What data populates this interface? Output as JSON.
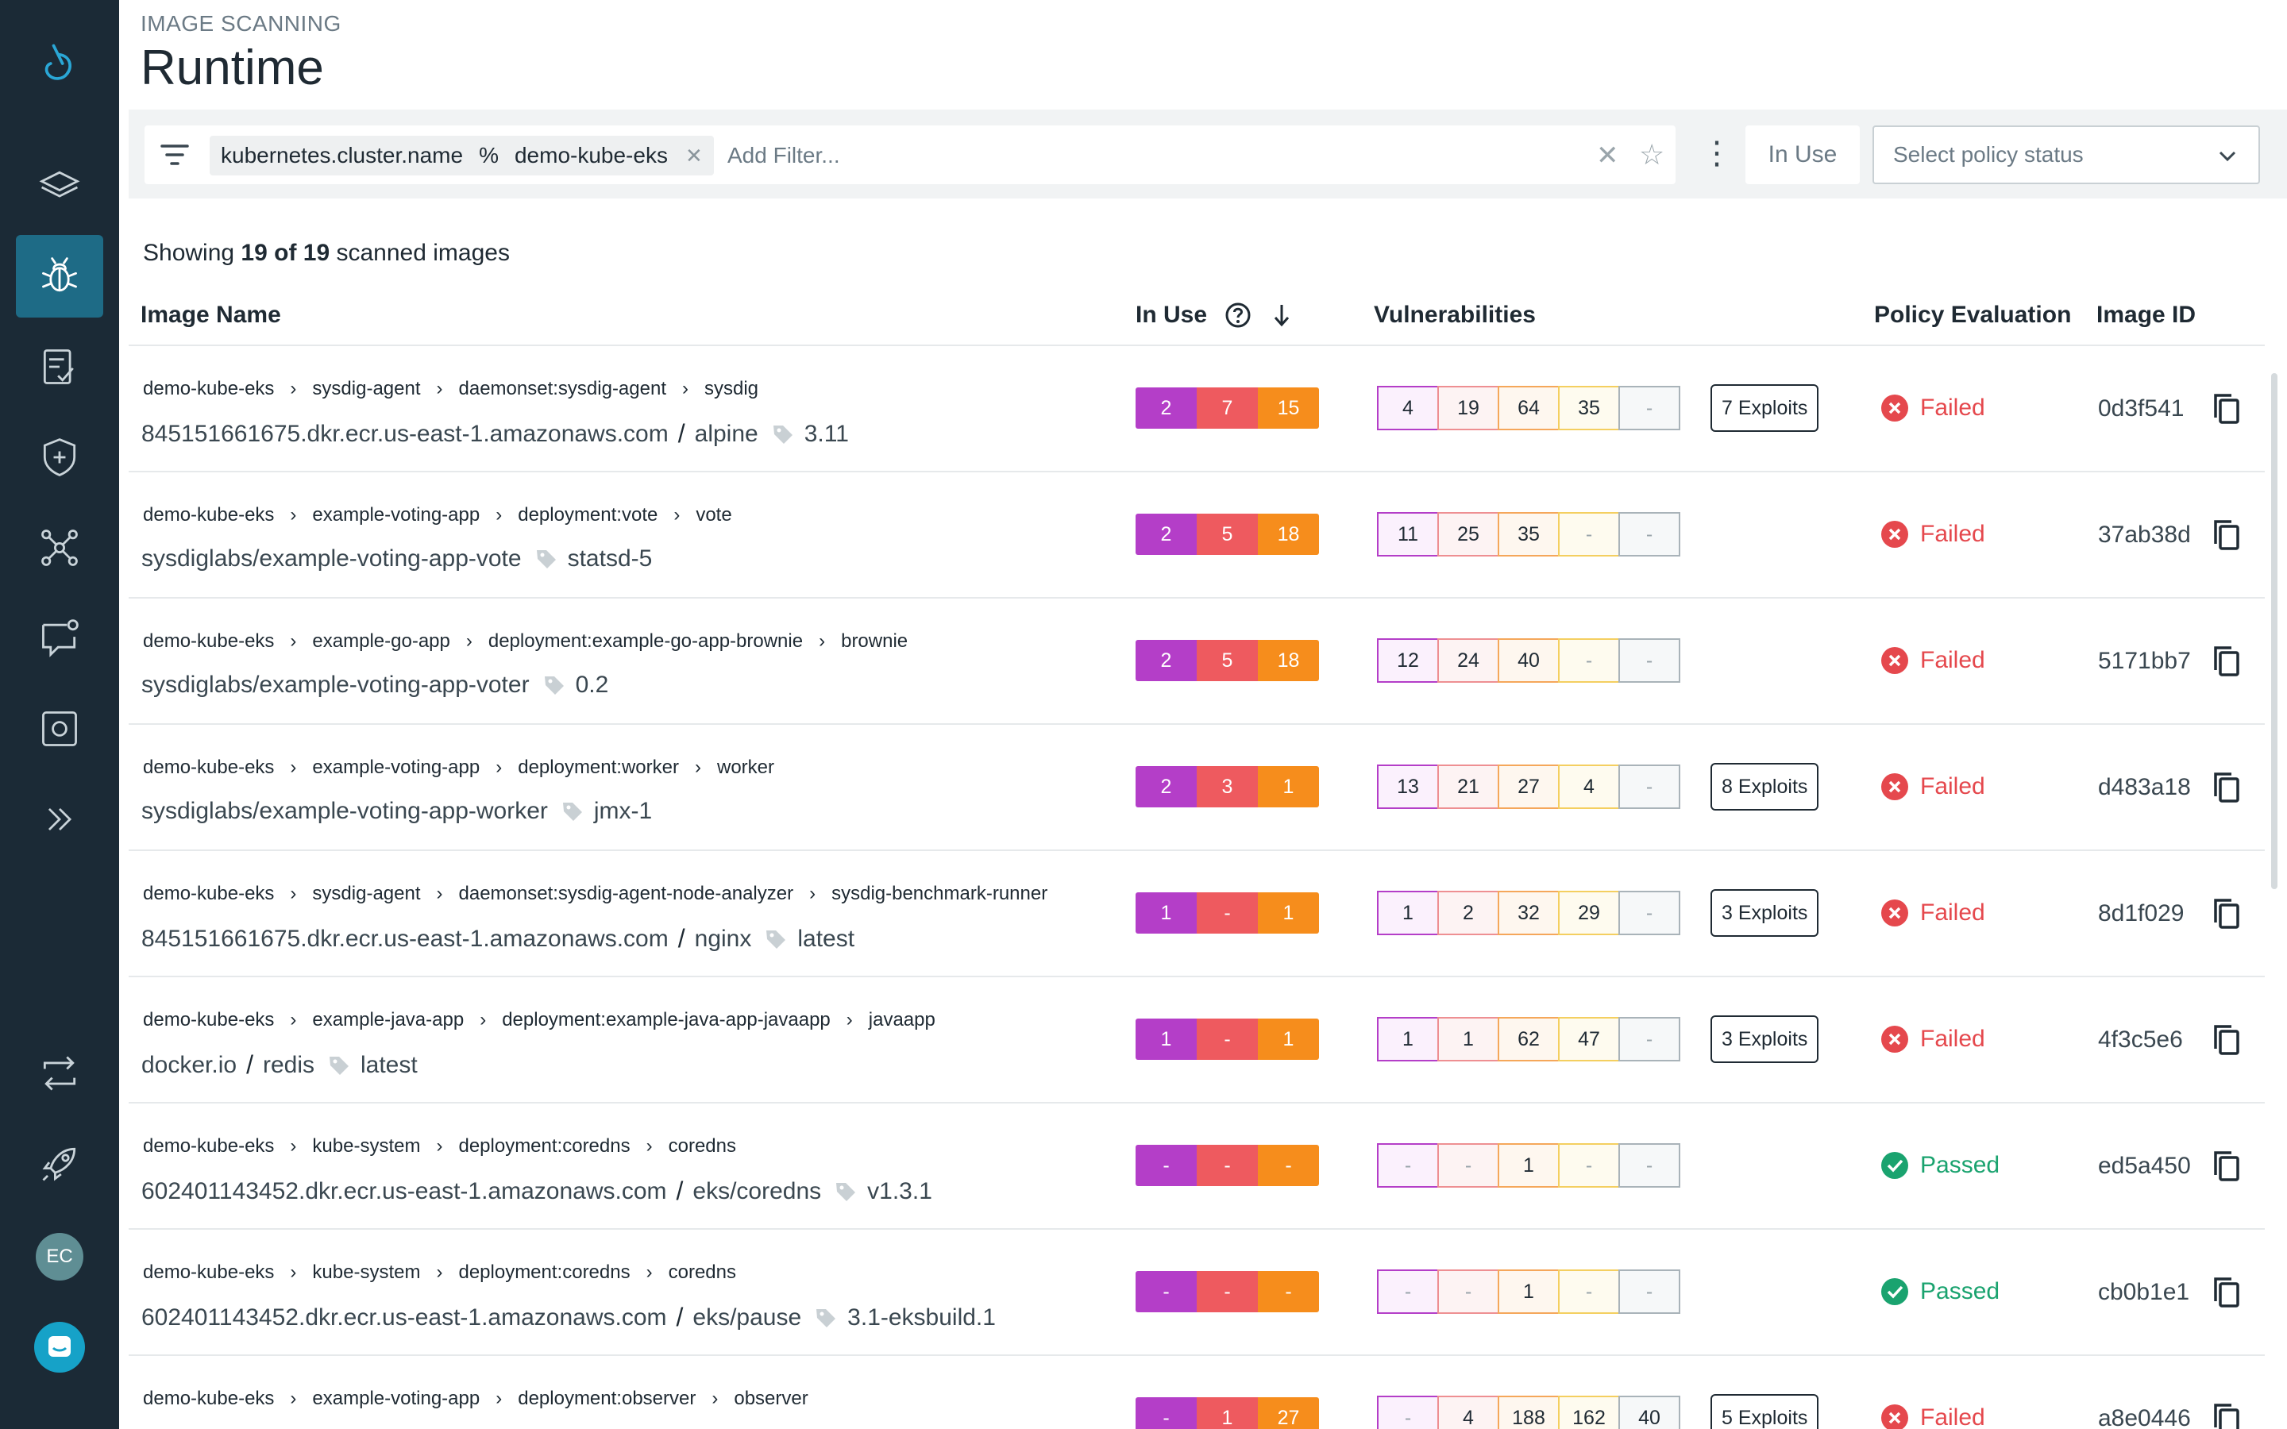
{
  "header": {
    "breadcrumb": "IMAGE SCANNING",
    "title": "Runtime"
  },
  "filter": {
    "chip_key": "kubernetes.cluster.name",
    "chip_op": "%",
    "chip_value": "demo-kube-eks",
    "add_placeholder": "Add Filter...",
    "in_use_label": "In Use",
    "policy_placeholder": "Select policy status"
  },
  "summary": {
    "prefix": "Showing ",
    "count": "19 of 19",
    "suffix": " scanned images"
  },
  "columns": {
    "image_name": "Image Name",
    "in_use": "In Use",
    "vulnerabilities": "Vulnerabilities",
    "policy": "Policy Evaluation",
    "image_id": "Image ID"
  },
  "colors": {
    "critical": "#b43ec8",
    "high": "#ee5a5f",
    "medium": "#f68d1c",
    "low": "#f4cf60",
    "negligible": "#a9b3b9",
    "failed": "#e5484d",
    "passed": "#1aa36f",
    "sidebar": "#1b2a36",
    "active_nav": "#1e6b86"
  },
  "sidebar": {
    "icons": [
      "logo-icon",
      "layers-icon",
      "bug-icon",
      "checklist-icon",
      "shield-plus-icon",
      "network-icon",
      "chat-check-icon",
      "capture-icon",
      "expand-icon",
      "sync-icon",
      "rocket-icon"
    ],
    "avatar": "EC"
  },
  "rows": [
    {
      "path": [
        "demo-kube-eks",
        "sysdig-agent",
        "daemonset:sysdig-agent",
        "sysdig"
      ],
      "registry": "845151661675.dkr.ecr.us-east-1.amazonaws.com",
      "repo": "alpine",
      "tag": "3.11",
      "in_use": [
        "2",
        "7",
        "15"
      ],
      "vulns": [
        "4",
        "19",
        "64",
        "35",
        "-"
      ],
      "exploits": "7 Exploits",
      "policy": "Failed",
      "image_id": "0d3f541"
    },
    {
      "path": [
        "demo-kube-eks",
        "example-voting-app",
        "deployment:vote",
        "vote"
      ],
      "registry": "",
      "repo": "sysdiglabs/example-voting-app-vote",
      "tag": "statsd-5",
      "in_use": [
        "2",
        "5",
        "18"
      ],
      "vulns": [
        "11",
        "25",
        "35",
        "-",
        "-"
      ],
      "exploits": "",
      "policy": "Failed",
      "image_id": "37ab38d"
    },
    {
      "path": [
        "demo-kube-eks",
        "example-go-app",
        "deployment:example-go-app-brownie",
        "brownie"
      ],
      "registry": "",
      "repo": "sysdiglabs/example-voting-app-voter",
      "tag": "0.2",
      "in_use": [
        "2",
        "5",
        "18"
      ],
      "vulns": [
        "12",
        "24",
        "40",
        "-",
        "-"
      ],
      "exploits": "",
      "policy": "Failed",
      "image_id": "5171bb7"
    },
    {
      "path": [
        "demo-kube-eks",
        "example-voting-app",
        "deployment:worker",
        "worker"
      ],
      "registry": "",
      "repo": "sysdiglabs/example-voting-app-worker",
      "tag": "jmx-1",
      "in_use": [
        "2",
        "3",
        "1"
      ],
      "vulns": [
        "13",
        "21",
        "27",
        "4",
        "-"
      ],
      "exploits": "8 Exploits",
      "policy": "Failed",
      "image_id": "d483a18"
    },
    {
      "path": [
        "demo-kube-eks",
        "sysdig-agent",
        "daemonset:sysdig-agent-node-analyzer",
        "sysdig-benchmark-runner"
      ],
      "registry": "845151661675.dkr.ecr.us-east-1.amazonaws.com",
      "repo": "nginx",
      "tag": "latest",
      "in_use": [
        "1",
        "-",
        "1"
      ],
      "vulns": [
        "1",
        "2",
        "32",
        "29",
        "-"
      ],
      "exploits": "3 Exploits",
      "policy": "Failed",
      "image_id": "8d1f029"
    },
    {
      "path": [
        "demo-kube-eks",
        "example-java-app",
        "deployment:example-java-app-javaapp",
        "javaapp"
      ],
      "registry": "docker.io",
      "repo": "redis",
      "tag": "latest",
      "in_use": [
        "1",
        "-",
        "1"
      ],
      "vulns": [
        "1",
        "1",
        "62",
        "47",
        "-"
      ],
      "exploits": "3 Exploits",
      "policy": "Failed",
      "image_id": "4f3c5e6"
    },
    {
      "path": [
        "demo-kube-eks",
        "kube-system",
        "deployment:coredns",
        "coredns"
      ],
      "registry": "602401143452.dkr.ecr.us-east-1.amazonaws.com",
      "repo": "eks/coredns",
      "tag": "v1.3.1",
      "in_use": [
        "-",
        "-",
        "-"
      ],
      "vulns": [
        "-",
        "-",
        "1",
        "-",
        "-"
      ],
      "exploits": "",
      "policy": "Passed",
      "image_id": "ed5a450"
    },
    {
      "path": [
        "demo-kube-eks",
        "kube-system",
        "deployment:coredns",
        "coredns"
      ],
      "registry": "602401143452.dkr.ecr.us-east-1.amazonaws.com",
      "repo": "eks/pause",
      "tag": "3.1-eksbuild.1",
      "in_use": [
        "-",
        "-",
        "-"
      ],
      "vulns": [
        "-",
        "-",
        "1",
        "-",
        "-"
      ],
      "exploits": "",
      "policy": "Passed",
      "image_id": "cb0b1e1"
    },
    {
      "path": [
        "demo-kube-eks",
        "example-voting-app",
        "deployment:observer",
        "observer"
      ],
      "registry": "",
      "repo": "",
      "tag": "",
      "in_use": [
        "-",
        "1",
        "27"
      ],
      "vulns": [
        "-",
        "4",
        "188",
        "162",
        "40"
      ],
      "exploits": "5 Exploits",
      "policy": "Failed",
      "image_id": "a8e0446"
    }
  ]
}
